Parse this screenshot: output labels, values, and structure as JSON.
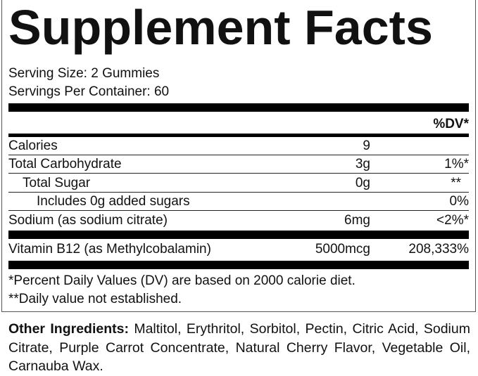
{
  "title": "Supplement Facts",
  "serving_size": "Serving Size: 2 Gummies",
  "servings_per_container": "Servings Per Container: 60",
  "dv_header": "%DV*",
  "rows": [
    {
      "name": "Calories",
      "amount": "9",
      "dv": ""
    },
    {
      "name": "Total Carbohydrate",
      "amount": "3g",
      "dv": "1%*"
    },
    {
      "name": "Total Sugar",
      "amount": "0g",
      "dv": "**"
    },
    {
      "name": "Includes 0g added sugars",
      "amount": "",
      "dv": "0%"
    },
    {
      "name": "Sodium (as sodium citrate)",
      "amount": "6mg",
      "dv": "<2%*"
    },
    {
      "name": "Vitamin B12 (as Methylcobalamin)",
      "amount": "5000mcg",
      "dv": "208,333%"
    }
  ],
  "footnotes": [
    "*Percent Daily Values (DV) are based on 2000 calorie diet.",
    "**Daily value not established."
  ],
  "other_ingredients": {
    "label": "Other Ingredients:",
    "text": " Maltitol, Erythritol, Sorbitol, Pectin, Citric Acid, Sodium Citrate, Purple Carrot Concentrate, Natural Cherry Flavor, Vegetable Oil, Carnauba Wax."
  }
}
